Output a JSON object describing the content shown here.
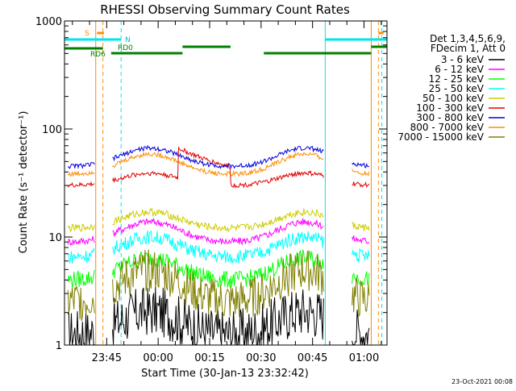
{
  "chart_data": {
    "type": "line",
    "title": "RHESSI Observing Summary Count Rates",
    "xlabel": "Start Time (30-Jan-13 23:32:42)",
    "ylabel": "Count Rate (s⁻¹ detector⁻¹)",
    "yscale": "log",
    "ylim": [
      1,
      1000
    ],
    "xlim_minutes_from_start": [
      0,
      94
    ],
    "x_ticks": [
      "23:45",
      "00:00",
      "00:15",
      "00:30",
      "00:45",
      "01:00"
    ],
    "y_ticks": [
      "1",
      "10",
      "100",
      "1000"
    ],
    "legend_header": [
      "Det 1,3,4,5,6,9,",
      "FDecim 1, Att 0"
    ],
    "legend_position": "right",
    "timestamp": "23-Oct-2021 00:08",
    "series": [
      {
        "name": "3 - 6 keV",
        "color": "#000000"
      },
      {
        "name": "6 - 12 keV",
        "color": "#ff00ff"
      },
      {
        "name": "12 - 25 keV",
        "color": "#00ff00"
      },
      {
        "name": "25 - 50 keV",
        "color": "#00ffff"
      },
      {
        "name": "50 - 100 keV",
        "color": "#cccc00"
      },
      {
        "name": "100 - 300 keV",
        "color": "#e00000"
      },
      {
        "name": "300 - 800 keV",
        "color": "#0000e0"
      },
      {
        "name": "800 - 7000 keV",
        "color": "#ff8c00"
      },
      {
        "name": "7000 - 15000 keV",
        "color": "#808000"
      }
    ],
    "annotations": {
      "saa_label": "S",
      "night_label": "N",
      "rd0_label": "RD0",
      "rd6_label": "RD6"
    }
  }
}
